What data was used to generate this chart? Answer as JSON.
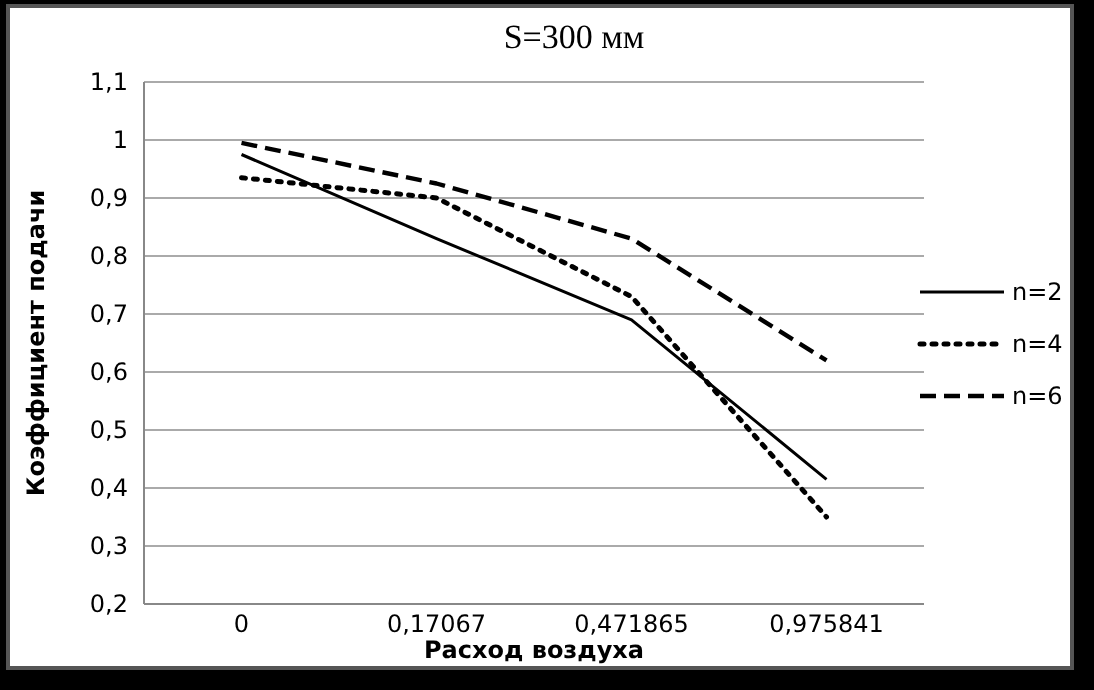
{
  "chart_data": {
    "type": "line",
    "title": "S=300 мм",
    "xlabel": "Расход воздуха",
    "ylabel": "Коэффициент подачи",
    "categories": [
      "0",
      "0,17067",
      "0,471865",
      "0,975841"
    ],
    "series": [
      {
        "name": "n=2",
        "color": "#000000",
        "line_style": "solid",
        "values": [
          0.975,
          0.83,
          0.69,
          0.415
        ]
      },
      {
        "name": "n=4",
        "color": "#000000",
        "line_style": "dotted",
        "values": [
          0.935,
          0.9,
          0.73,
          0.35
        ]
      },
      {
        "name": "n=6",
        "color": "#000000",
        "line_style": "dashed",
        "values": [
          0.995,
          0.925,
          0.83,
          0.62
        ]
      }
    ],
    "ylim": [
      0.2,
      1.1
    ],
    "yticks": [
      {
        "value": 0.2,
        "label": "0,2"
      },
      {
        "value": 0.3,
        "label": "0,3"
      },
      {
        "value": 0.4,
        "label": "0,4"
      },
      {
        "value": 0.5,
        "label": "0,5"
      },
      {
        "value": 0.6,
        "label": "0,6"
      },
      {
        "value": 0.7,
        "label": "0,7"
      },
      {
        "value": 0.8,
        "label": "0,8"
      },
      {
        "value": 0.9,
        "label": "0,9"
      },
      {
        "value": 1,
        "label": "1"
      },
      {
        "value": 1.1,
        "label": "1,1"
      }
    ],
    "grid": "y",
    "legend": "right",
    "marker": "none"
  }
}
